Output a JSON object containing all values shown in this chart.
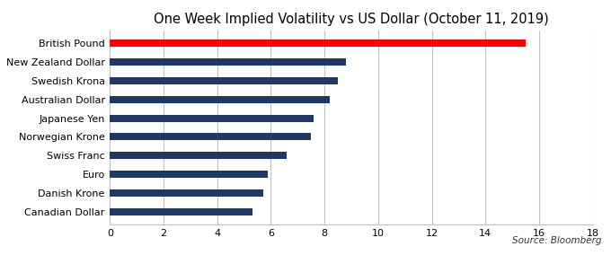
{
  "title": "One Week Implied Volatility vs US Dollar (October 11, 2019)",
  "categories": [
    "Canadian Dollar",
    "Danish Krone",
    "Euro",
    "Swiss Franc",
    "Norwegian Krone",
    "Japanese Yen",
    "Australian Dollar",
    "Swedish Krona",
    "New Zealand Dollar",
    "British Pound"
  ],
  "values": [
    5.3,
    5.7,
    5.9,
    6.6,
    7.5,
    7.6,
    8.2,
    8.5,
    8.8,
    15.5
  ],
  "bar_colors": [
    "#1f3864",
    "#1f3864",
    "#1f3864",
    "#1f3864",
    "#1f3864",
    "#1f3864",
    "#1f3864",
    "#1f3864",
    "#1f3864",
    "#ff0000"
  ],
  "xlim": [
    0,
    18
  ],
  "xticks": [
    0,
    2,
    4,
    6,
    8,
    10,
    12,
    14,
    16,
    18
  ],
  "background_color": "#ffffff",
  "grid_color": "#c0c0c0",
  "source_text": "Source: Bloomberg",
  "title_fontsize": 10.5,
  "label_fontsize": 8,
  "tick_fontsize": 8
}
